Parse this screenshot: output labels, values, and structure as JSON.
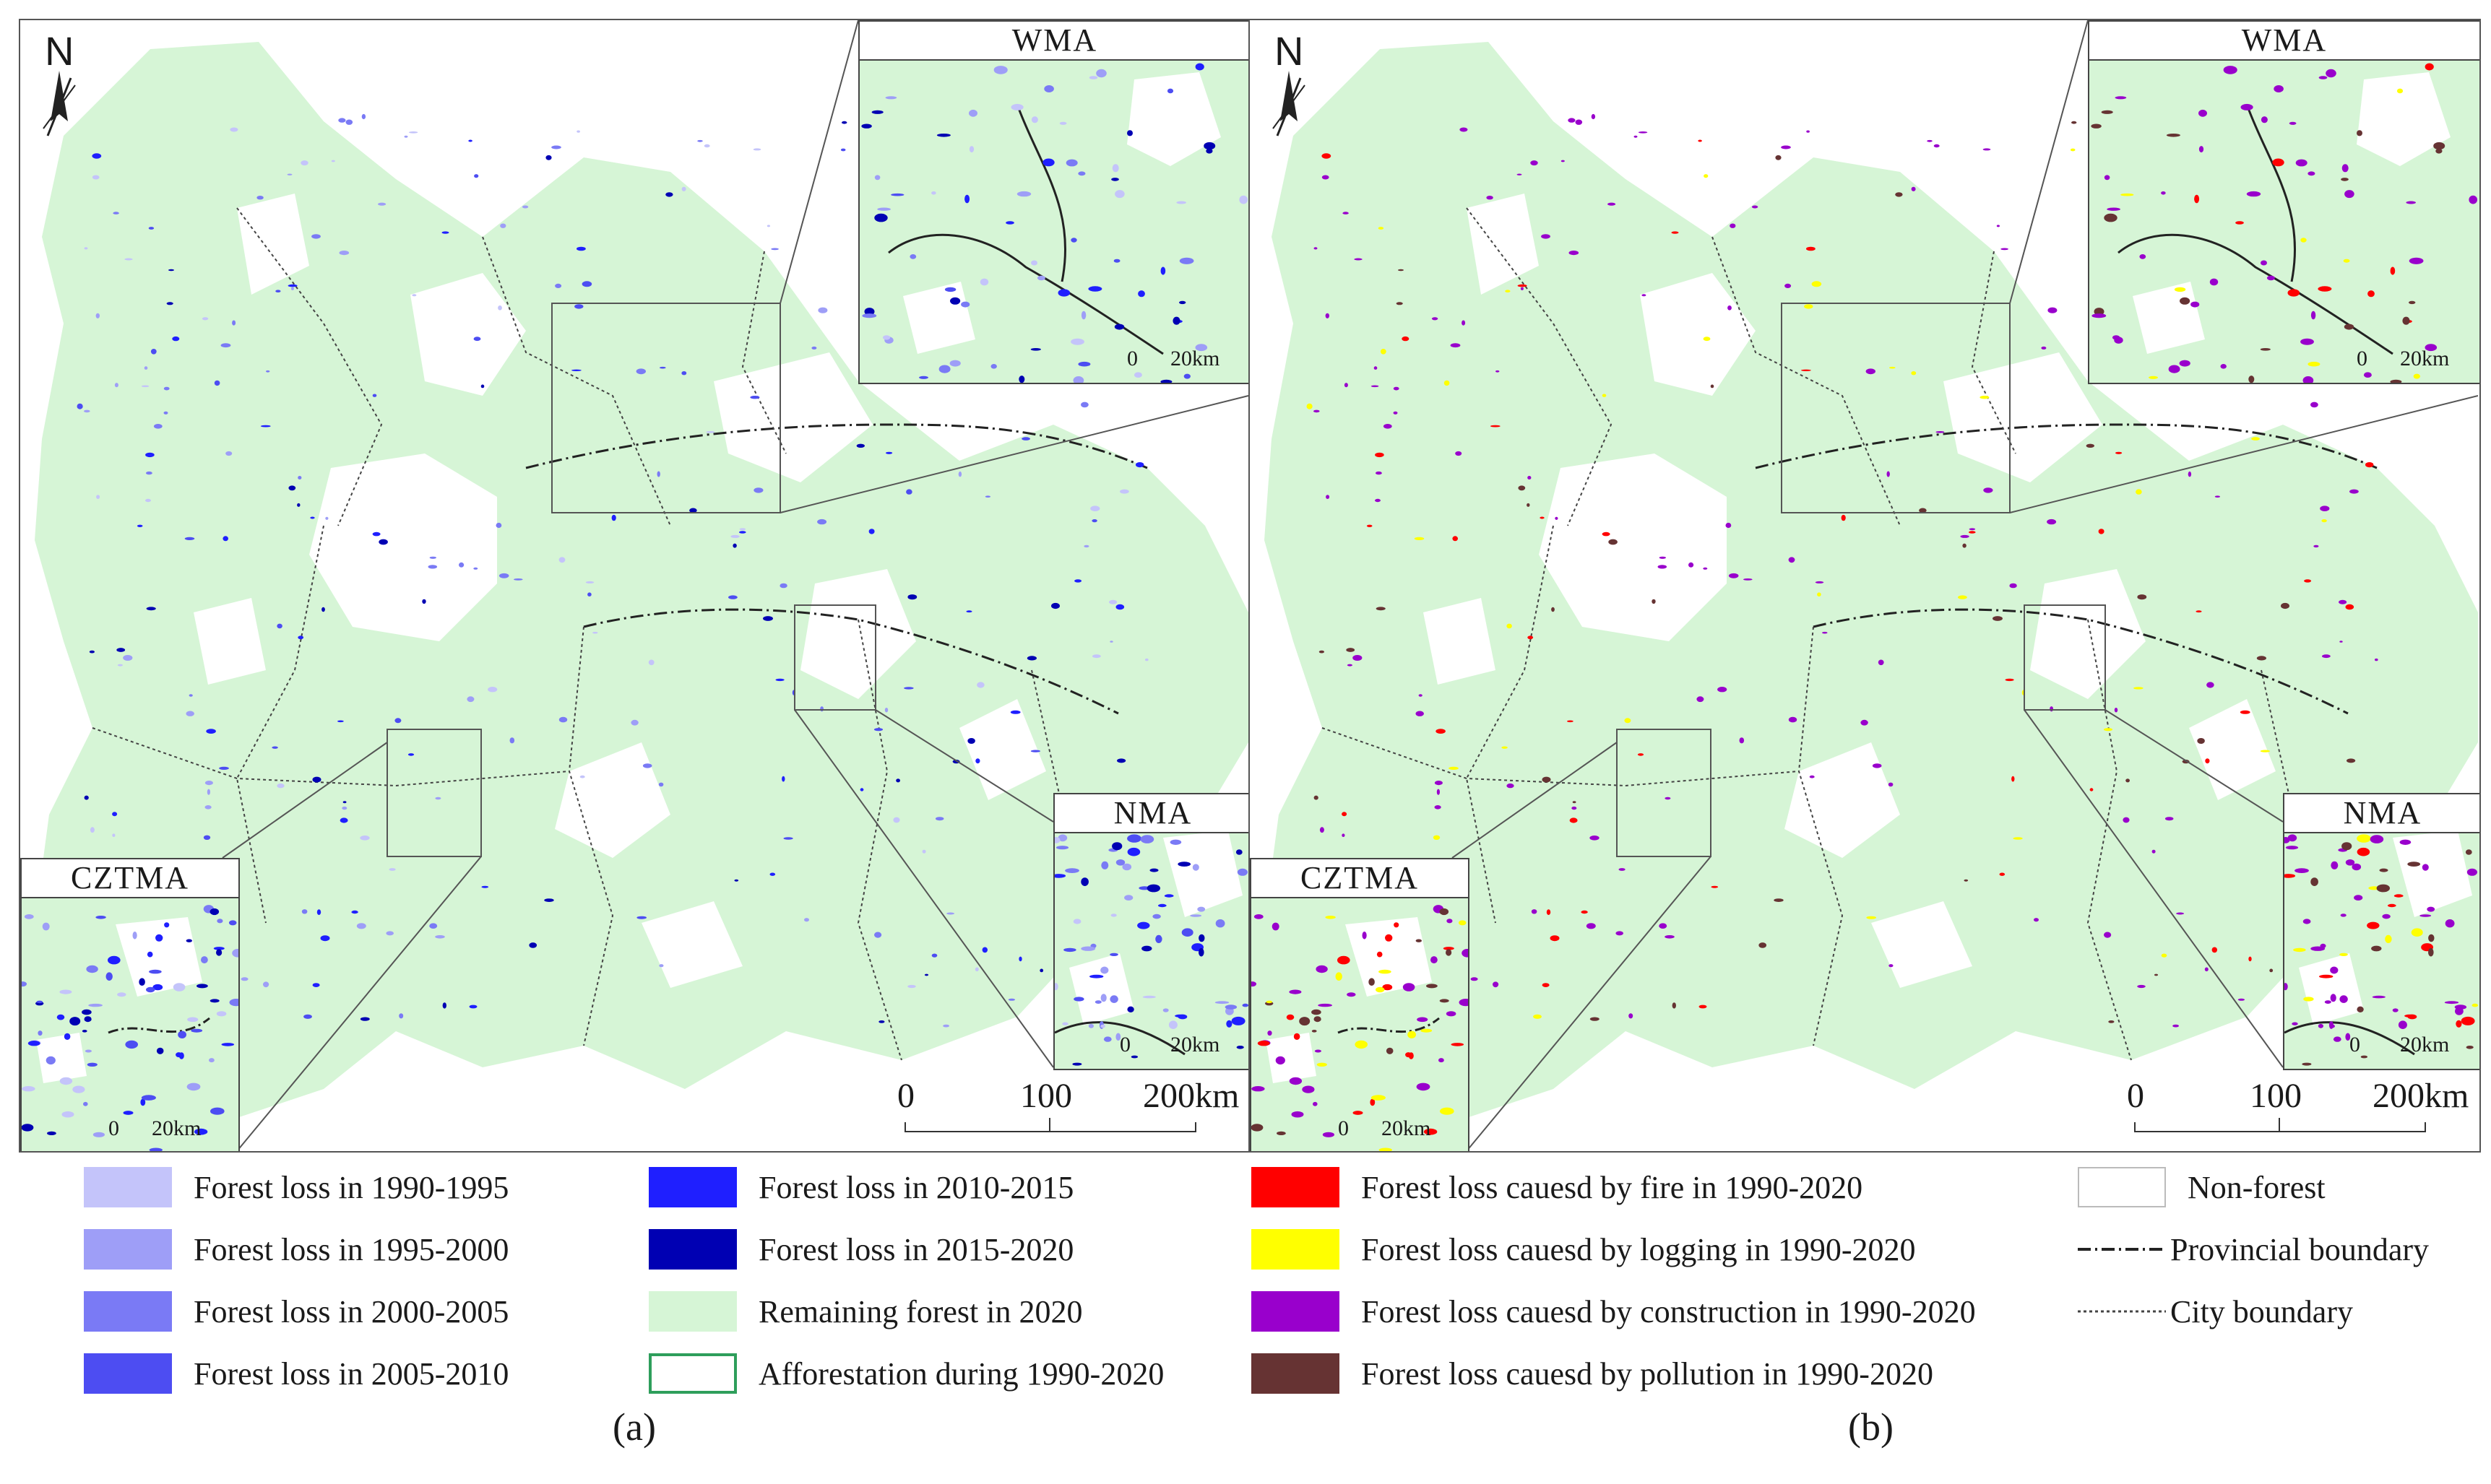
{
  "panels": {
    "a": {
      "caption": "(a)",
      "north": "N",
      "scalebar": {
        "l0": "0",
        "l100": "100",
        "l200": "200km"
      },
      "insets": {
        "wma": {
          "title": "WMA",
          "s0": "0",
          "s20": "20km"
        },
        "nma": {
          "title": "NMA",
          "s0": "0",
          "s20": "20km"
        },
        "cztma": {
          "title": "CZTMA",
          "s0": "0",
          "s20": "20km"
        }
      }
    },
    "b": {
      "caption": "(b)",
      "north": "N",
      "scalebar": {
        "l0": "0",
        "l100": "100",
        "l200": "200km"
      },
      "insets": {
        "wma": {
          "title": "WMA",
          "s0": "0",
          "s20": "20km"
        },
        "nma": {
          "title": "NMA",
          "s0": "0",
          "s20": "20km"
        },
        "cztma": {
          "title": "CZTMA",
          "s0": "0",
          "s20": "20km"
        }
      }
    }
  },
  "colors": {
    "remaining_forest": "#d6f5d6",
    "loss_1990_1995": "#c4c4fa",
    "loss_1995_2000": "#9e9ef7",
    "loss_2000_2005": "#7a7af5",
    "loss_2005_2010": "#4d4df2",
    "loss_2010_2015": "#1f1fff",
    "loss_2015_2020": "#0000b3",
    "afforestation_border": "#2e9e5b",
    "fire": "#ff0000",
    "logging": "#ffff00",
    "construction": "#9900cc",
    "pollution": "#663333"
  },
  "legend": {
    "loss_1990_1995": "Forest loss in 1990-1995",
    "loss_1995_2000": "Forest loss in 1995-2000",
    "loss_2000_2005": "Forest loss in 2000-2005",
    "loss_2005_2010": "Forest loss in 2005-2010",
    "loss_2010_2015": "Forest loss in 2010-2015",
    "loss_2015_2020": "Forest loss in 2015-2020",
    "remaining": "Remaining forest in 2020",
    "afforestation": "Afforestation during 1990-2020",
    "fire": "Forest loss cauesd by fire in 1990-2020",
    "logging": "Forest loss cauesd by logging in 1990-2020",
    "construction": "Forest loss cauesd by construction in 1990-2020",
    "pollution": "Forest loss cauesd by pollution in 1990-2020",
    "nonforest": "Non-forest",
    "provincial": "Provincial boundary",
    "city": "City boundary"
  }
}
